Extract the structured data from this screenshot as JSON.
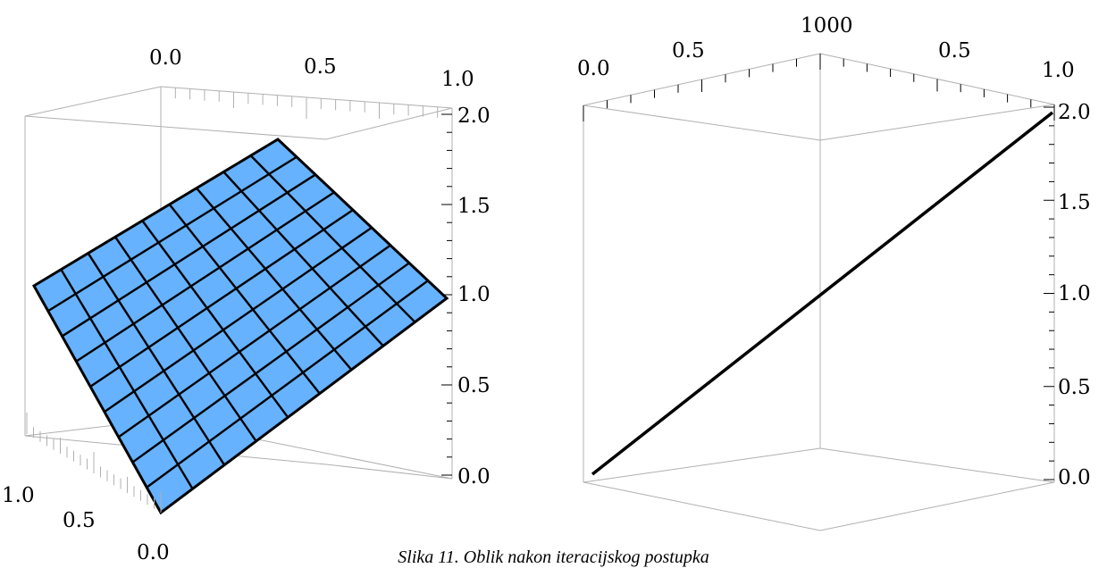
{
  "caption": "Slika 11. Oblik nakon iteracijskog postupka",
  "colors": {
    "surface": "#66b2ff",
    "box": "#b0b0b0",
    "line": "#000000"
  },
  "chart_data": [
    {
      "type": "surface",
      "surface": "z = 2 - x - y (planar)",
      "x_range": [
        0,
        1
      ],
      "y_range": [
        0,
        1
      ],
      "z_range": [
        0,
        2
      ],
      "mesh_divisions": 9,
      "tick_labels": {
        "top": [
          "0.0",
          "0.5",
          "1.0"
        ],
        "left": [
          "1.0",
          "0.5",
          "0.0"
        ],
        "right": [
          "2.0",
          "1.5",
          "1.0",
          "0.5",
          "0.0"
        ]
      },
      "surface_color": "#66b2ff"
    },
    {
      "type": "line",
      "description": "3D curve rising linearly",
      "x": [
        0,
        1
      ],
      "y": [
        0,
        2
      ],
      "z_range": [
        0,
        2
      ],
      "tick_labels": {
        "top": [
          "0.0",
          "0.5",
          "1000",
          "0.5",
          "1.0"
        ],
        "right": [
          "2.0",
          "1.5",
          "1.0",
          "0.5",
          "0.0"
        ]
      }
    }
  ]
}
